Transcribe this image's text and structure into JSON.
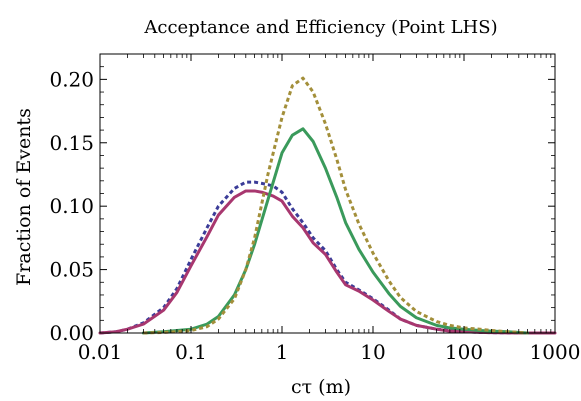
{
  "chart_data": {
    "type": "line",
    "title": "Acceptance and Efficiency (Point LHS)",
    "xlabel": "cτ (m)",
    "ylabel": "Fraction of Events",
    "x_scale": "log",
    "xlim": [
      0.01,
      1000
    ],
    "ylim": [
      0.0,
      0.22
    ],
    "x_ticks": [
      0.01,
      0.1,
      1,
      10,
      100,
      1000
    ],
    "x_tick_labels": [
      "0.01",
      "0.1",
      "1",
      "10",
      "100",
      "1000"
    ],
    "y_ticks": [
      0.0,
      0.05,
      0.1,
      0.15,
      0.2
    ],
    "y_tick_labels": [
      "0.00",
      "0.05",
      "0.10",
      "0.15",
      "0.20"
    ],
    "grid": false,
    "series": [
      {
        "color": "#3b3c98",
        "style": "dotted",
        "x": [
          0.01,
          0.015,
          0.02,
          0.03,
          0.05,
          0.07,
          0.1,
          0.15,
          0.2,
          0.3,
          0.4,
          0.5,
          0.6,
          0.8,
          1.0,
          1.3,
          1.7,
          2.2,
          3,
          4,
          5,
          7,
          10,
          15,
          20,
          30,
          50,
          70,
          100,
          150,
          200,
          300,
          500,
          700,
          1000
        ],
        "values": [
          0.0,
          0.001,
          0.003,
          0.008,
          0.02,
          0.035,
          0.058,
          0.083,
          0.1,
          0.114,
          0.119,
          0.119,
          0.118,
          0.116,
          0.111,
          0.098,
          0.087,
          0.075,
          0.065,
          0.05,
          0.04,
          0.034,
          0.027,
          0.018,
          0.011,
          0.006,
          0.003,
          0.002,
          0.001,
          0.0005,
          0.0003,
          0.0001,
          0.0,
          0.0,
          0.0
        ]
      },
      {
        "color": "#a8376f",
        "style": "solid",
        "x": [
          0.01,
          0.015,
          0.02,
          0.03,
          0.05,
          0.07,
          0.1,
          0.15,
          0.2,
          0.3,
          0.4,
          0.5,
          0.6,
          0.8,
          1.0,
          1.3,
          1.7,
          2.2,
          3,
          4,
          5,
          7,
          10,
          15,
          20,
          30,
          50,
          70,
          100,
          150,
          200,
          300,
          500,
          700,
          1000
        ],
        "values": [
          0.0,
          0.001,
          0.003,
          0.007,
          0.018,
          0.032,
          0.053,
          0.076,
          0.093,
          0.107,
          0.112,
          0.112,
          0.111,
          0.108,
          0.104,
          0.092,
          0.083,
          0.071,
          0.062,
          0.048,
          0.038,
          0.033,
          0.026,
          0.017,
          0.011,
          0.006,
          0.003,
          0.0015,
          0.001,
          0.0005,
          0.0003,
          0.0001,
          0.0,
          0.0,
          0.0
        ]
      },
      {
        "color": "#3a9a5b",
        "style": "solid",
        "x": [
          0.03,
          0.05,
          0.07,
          0.1,
          0.15,
          0.2,
          0.3,
          0.4,
          0.5,
          0.7,
          1.0,
          1.3,
          1.7,
          2.2,
          3,
          4,
          5,
          7,
          10,
          15,
          20,
          30,
          50,
          70,
          100,
          150,
          200,
          300,
          500
        ],
        "values": [
          0.0,
          0.001,
          0.002,
          0.003,
          0.007,
          0.013,
          0.03,
          0.05,
          0.07,
          0.105,
          0.142,
          0.156,
          0.161,
          0.151,
          0.13,
          0.107,
          0.087,
          0.066,
          0.048,
          0.031,
          0.021,
          0.012,
          0.006,
          0.004,
          0.003,
          0.002,
          0.0015,
          0.001,
          0.0
        ]
      },
      {
        "color": "#a38f3a",
        "style": "dotted",
        "x": [
          0.03,
          0.05,
          0.07,
          0.1,
          0.15,
          0.2,
          0.3,
          0.4,
          0.5,
          0.7,
          1.0,
          1.3,
          1.7,
          2.2,
          3,
          4,
          5,
          7,
          10,
          15,
          20,
          30,
          50,
          70,
          100,
          150,
          200,
          300,
          500
        ],
        "values": [
          0.0,
          0.0005,
          0.001,
          0.002,
          0.005,
          0.011,
          0.027,
          0.05,
          0.075,
          0.125,
          0.17,
          0.195,
          0.201,
          0.19,
          0.165,
          0.137,
          0.113,
          0.086,
          0.063,
          0.041,
          0.028,
          0.017,
          0.009,
          0.006,
          0.004,
          0.003,
          0.002,
          0.001,
          0.0
        ]
      }
    ]
  }
}
